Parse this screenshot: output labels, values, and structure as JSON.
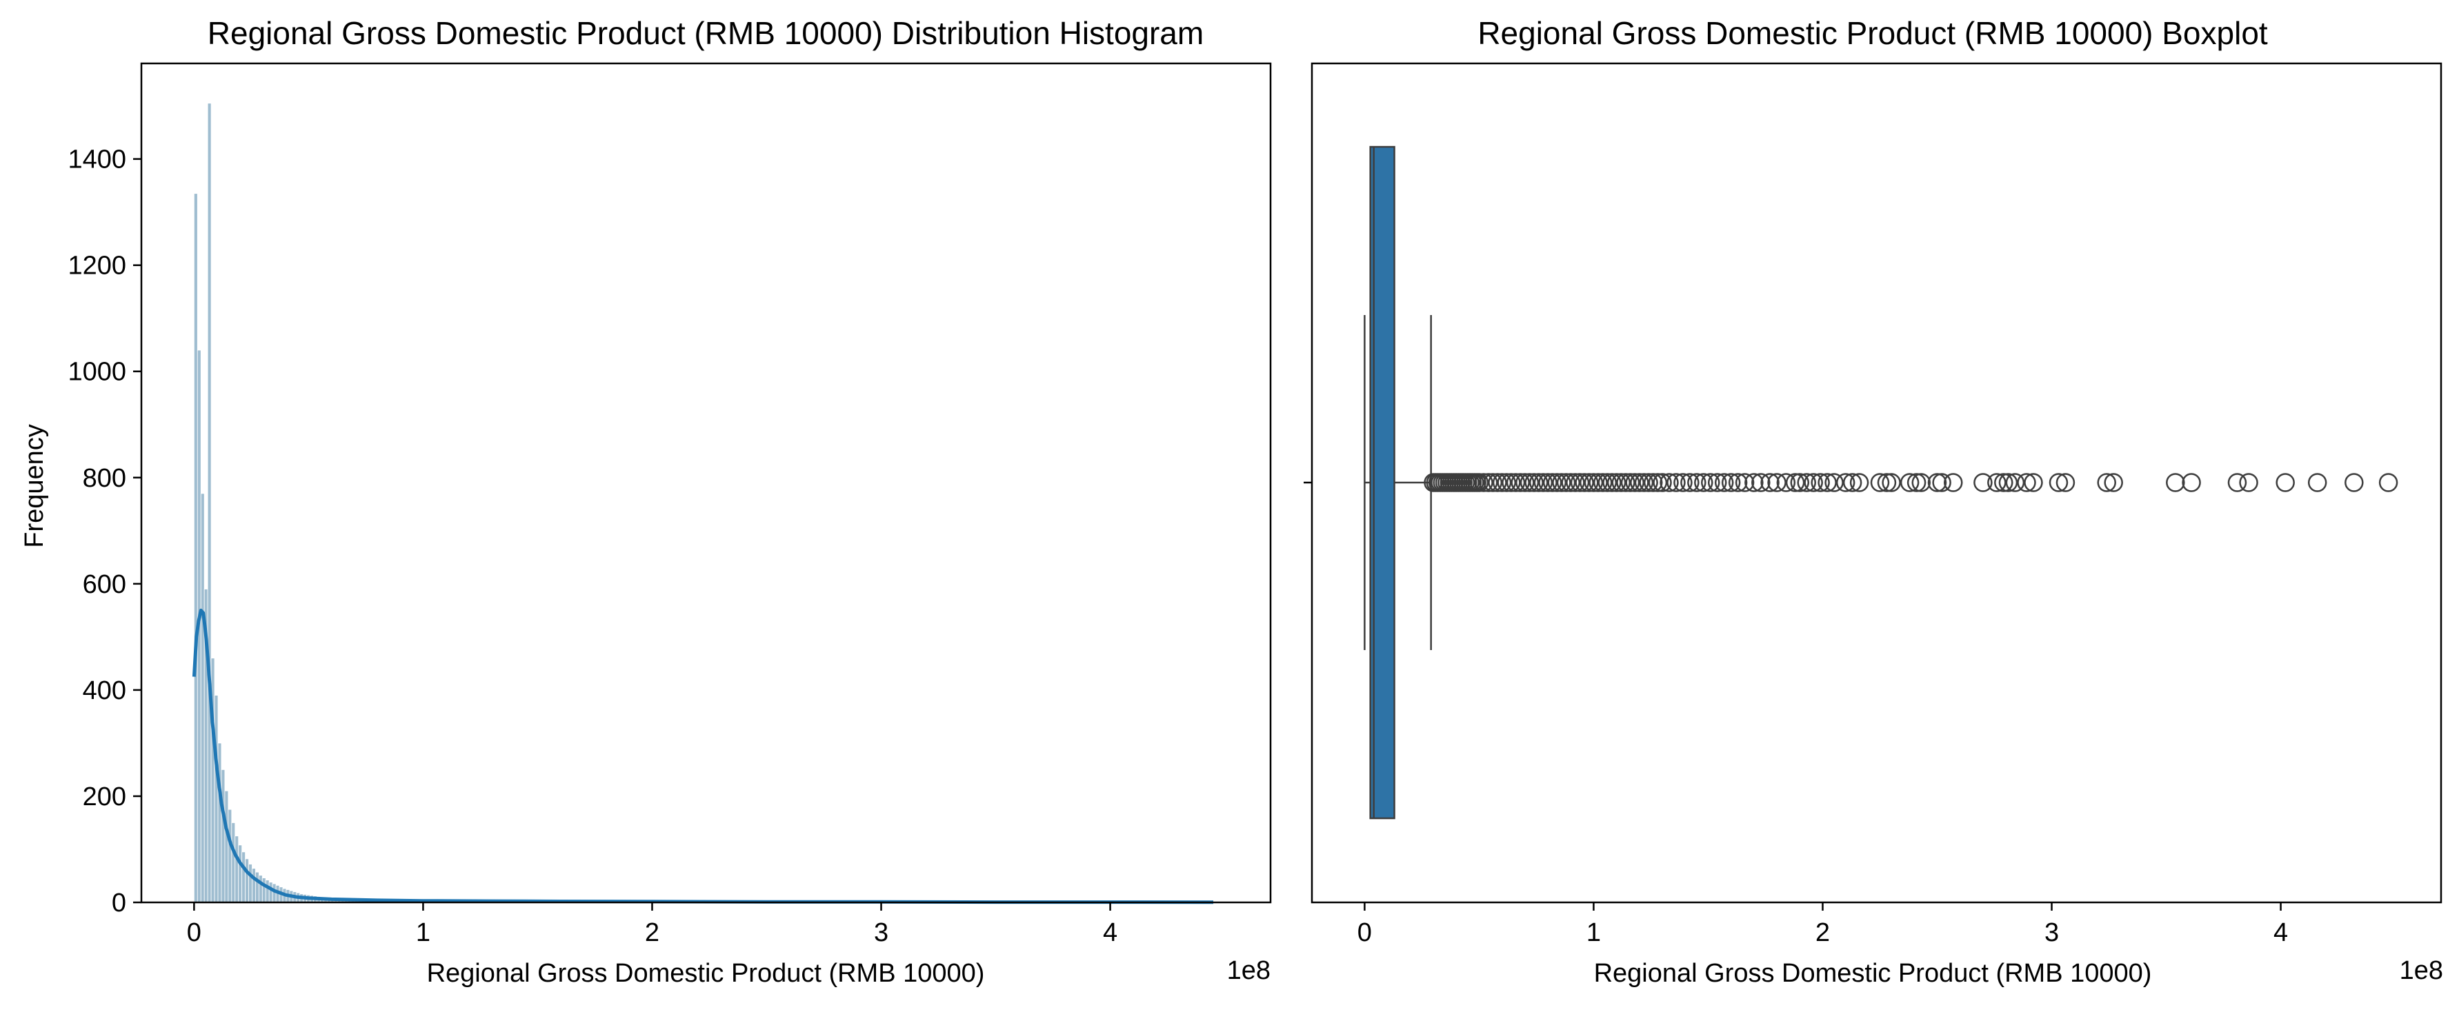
{
  "chart_data": [
    {
      "type": "histogram",
      "title": "Regional Gross Domestic Product (RMB 10000) Distribution Histogram",
      "xlabel": "Regional Gross Domestic Product (RMB 10000)",
      "ylabel": "Frequency",
      "x_offset_label": "1e8",
      "xlim": [
        -0.23,
        4.7
      ],
      "ylim": [
        0,
        1580
      ],
      "x_ticks": [
        0,
        1,
        2,
        3,
        4
      ],
      "y_ticks": [
        0,
        200,
        400,
        600,
        800,
        1000,
        1200,
        1400
      ],
      "bar_color": "#7fa7c0",
      "kde_color": "#1f77b4",
      "bin_width": 0.0149,
      "bin_start": 0,
      "counts": [
        1335,
        1040,
        770,
        590,
        1505,
        460,
        390,
        300,
        250,
        210,
        175,
        150,
        125,
        108,
        95,
        82,
        72,
        64,
        57,
        51,
        46,
        42,
        38,
        35,
        32,
        29,
        26,
        24,
        22,
        20,
        18,
        16,
        15,
        14,
        13,
        12,
        11,
        10,
        9,
        9,
        8,
        8,
        7,
        7,
        6,
        6,
        6,
        5,
        5,
        5,
        4,
        4,
        4,
        4,
        3,
        3,
        3,
        3,
        3,
        3
      ],
      "kde": {
        "x": [
          0.0,
          0.01,
          0.02,
          0.03,
          0.04,
          0.05,
          0.06,
          0.07,
          0.08,
          0.1,
          0.12,
          0.14,
          0.16,
          0.18,
          0.2,
          0.23,
          0.26,
          0.3,
          0.35,
          0.4,
          0.45,
          0.5,
          0.6,
          0.7,
          0.8,
          1.0,
          1.3,
          1.6,
          2.0,
          2.5,
          3.0,
          3.5,
          4.0,
          4.45
        ],
        "y": [
          425,
          500,
          530,
          550,
          545,
          510,
          460,
          400,
          340,
          250,
          185,
          140,
          110,
          90,
          75,
          58,
          46,
          34,
          22,
          14,
          10,
          8,
          6,
          5,
          4,
          3,
          2.5,
          2,
          1.5,
          1,
          1,
          0.5,
          0.5,
          0.3
        ]
      }
    },
    {
      "type": "boxplot",
      "title": "Regional Gross Domestic Product (RMB 10000) Boxplot",
      "xlabel": "Regional Gross Domestic Product (RMB 10000)",
      "x_offset_label": "1e8",
      "xlim": [
        -0.23,
        4.7
      ],
      "x_ticks": [
        0,
        1,
        2,
        3,
        4
      ],
      "box_color": "#2e73a6",
      "edge_color": "#3d3d3d",
      "whisker_low": 0.0,
      "q1": 0.025,
      "median": 0.04,
      "q3": 0.13,
      "whisker_high": 0.29,
      "outliers": [
        0.3,
        0.31,
        0.32,
        0.33,
        0.34,
        0.35,
        0.36,
        0.37,
        0.38,
        0.39,
        0.4,
        0.41,
        0.42,
        0.43,
        0.44,
        0.45,
        0.46,
        0.47,
        0.48,
        0.49,
        0.5,
        0.52,
        0.54,
        0.56,
        0.58,
        0.6,
        0.62,
        0.64,
        0.66,
        0.68,
        0.7,
        0.72,
        0.74,
        0.76,
        0.78,
        0.8,
        0.82,
        0.84,
        0.86,
        0.88,
        0.9,
        0.92,
        0.94,
        0.96,
        0.98,
        1.0,
        1.02,
        1.04,
        1.06,
        1.08,
        1.1,
        1.12,
        1.14,
        1.16,
        1.18,
        1.2,
        1.22,
        1.24,
        1.26,
        1.28,
        1.3,
        1.33,
        1.36,
        1.39,
        1.42,
        1.45,
        1.48,
        1.51,
        1.54,
        1.57,
        1.6,
        1.63,
        1.66,
        1.7,
        1.73,
        1.77,
        1.8,
        1.84,
        1.88,
        1.9,
        1.93,
        1.96,
        1.99,
        2.02,
        2.05,
        2.1,
        2.13,
        2.16,
        2.25,
        2.28,
        2.3,
        2.38,
        2.41,
        2.43,
        2.5,
        2.52,
        2.57,
        2.7,
        2.76,
        2.79,
        2.81,
        2.84,
        2.89,
        2.92,
        3.03,
        3.06,
        3.24,
        3.27,
        3.54,
        3.61,
        3.81,
        3.86,
        4.02,
        4.16,
        4.32,
        4.47
      ]
    }
  ]
}
